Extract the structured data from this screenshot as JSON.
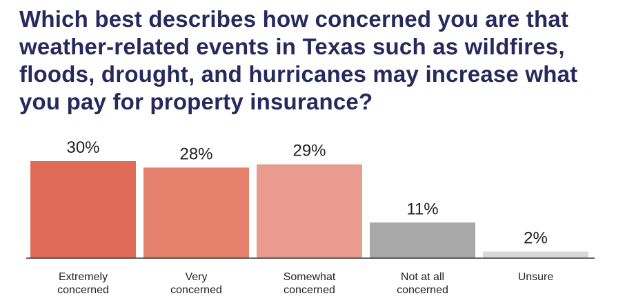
{
  "chart_data": {
    "type": "bar",
    "title": "Which best describes how concerned you are that weather-related events in Texas such as wildfires, floods, drought, and hurricanes may increase what you pay for property insurance?",
    "categories": [
      [
        "Extremely",
        "concerned"
      ],
      [
        "Very",
        "concerned"
      ],
      [
        "Somewhat",
        "concerned"
      ],
      [
        "Not at all",
        "concerned"
      ],
      [
        "Unsure"
      ]
    ],
    "values": [
      30,
      28,
      29,
      11,
      2
    ],
    "value_labels": [
      "30%",
      "28%",
      "29%",
      "11%",
      "2%"
    ],
    "colors": [
      "#e06c57",
      "#e5806d",
      "#e99c8e",
      "#a8a8a8",
      "#d8d8d8"
    ],
    "xlabel": "",
    "ylabel": "",
    "ylim": [
      0,
      30
    ],
    "grid": false,
    "legend": "none"
  }
}
